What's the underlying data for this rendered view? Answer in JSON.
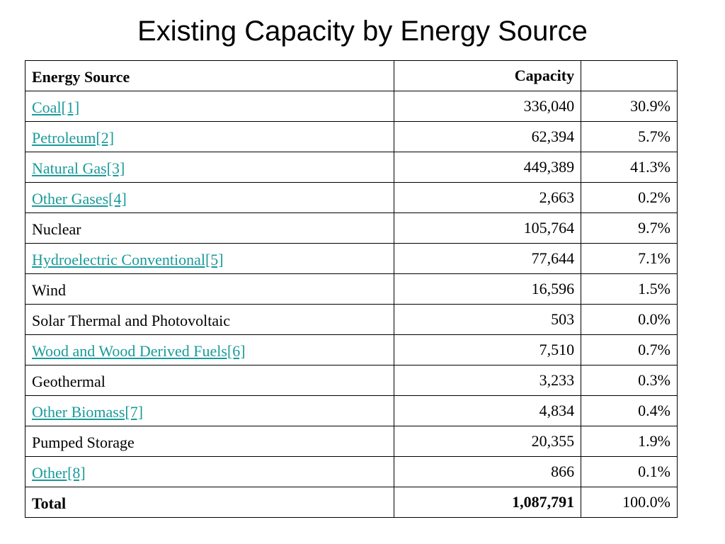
{
  "title": "Existing Capacity by Energy Source",
  "link_color": "#1a9a9a",
  "table": {
    "headers": [
      "Energy Source",
      "Capacity",
      ""
    ],
    "rows": [
      {
        "source": "Coal[1]",
        "capacity": "336,040",
        "percent": "30.9%",
        "is_link": true
      },
      {
        "source": "Petroleum[2]",
        "capacity": "62,394",
        "percent": "5.7%",
        "is_link": true
      },
      {
        "source": "Natural Gas[3]",
        "capacity": "449,389",
        "percent": "41.3%",
        "is_link": true
      },
      {
        "source": "Other Gases[4]",
        "capacity": "2,663",
        "percent": "0.2%",
        "is_link": true
      },
      {
        "source": "Nuclear",
        "capacity": "105,764",
        "percent": "9.7%",
        "is_link": false
      },
      {
        "source": "Hydroelectric Conventional[5]",
        "capacity": "77,644",
        "percent": "7.1%",
        "is_link": true
      },
      {
        "source": "Wind",
        "capacity": "16,596",
        "percent": "1.5%",
        "is_link": false
      },
      {
        "source": "Solar Thermal and Photovoltaic",
        "capacity": "503",
        "percent": "0.0%",
        "is_link": false
      },
      {
        "source": "Wood and Wood Derived Fuels[6]",
        "capacity": "7,510",
        "percent": "0.7%",
        "is_link": true
      },
      {
        "source": "Geothermal",
        "capacity": "3,233",
        "percent": "0.3%",
        "is_link": false
      },
      {
        "source": "Other Biomass[7]",
        "capacity": "4,834",
        "percent": "0.4%",
        "is_link": true
      },
      {
        "source": "Pumped Storage",
        "capacity": "20,355",
        "percent": "1.9%",
        "is_link": false
      },
      {
        "source": "Other[8]",
        "capacity": "866",
        "percent": "0.1%",
        "is_link": true
      }
    ],
    "total": {
      "source": "Total",
      "capacity": "1,087,791",
      "percent": "100.0%"
    }
  }
}
